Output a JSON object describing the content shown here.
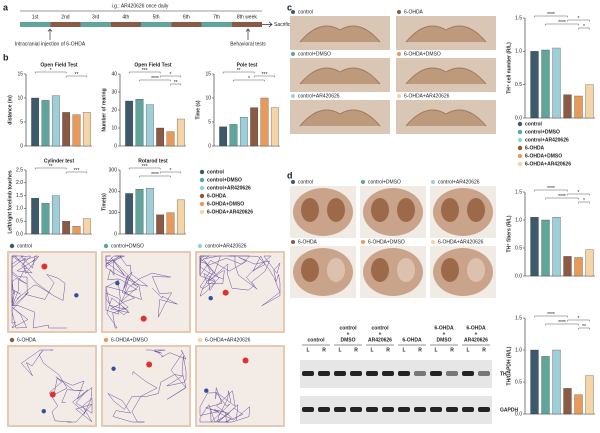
{
  "panels": [
    "a",
    "b",
    "c",
    "d"
  ],
  "timeline": {
    "title": "i.g.: AR420626 once daily",
    "weeks": [
      "1st",
      "2nd",
      "3rd",
      "4th",
      "5th",
      "6th",
      "7th",
      "8th week"
    ],
    "injection": "Intracranial injection of 6-OHDA",
    "behavior": "Behavioral tests",
    "end": "Sacrifice"
  },
  "tracks": [
    "control",
    "control+DMSO",
    "control+AR420626",
    "6-OHDA",
    "6-OHDA+DMSO",
    "6-OHDA+AR420626"
  ],
  "sections_c": [
    "control",
    "6-OHDA",
    "control+DMSO",
    "6-OHDA+DMSO",
    "control+AR420626",
    "6-OHDA+AR420626"
  ],
  "sections_d": [
    "control",
    "control+DMSO",
    "control+AR420626",
    "6-OHDA",
    "6-OHDA+DMSO",
    "6-OHDA+AR420626"
  ],
  "blot": {
    "groups": [
      [
        "control"
      ],
      [
        "control",
        "+",
        "DMSO"
      ],
      [
        "control",
        "+",
        "AR420626"
      ],
      [
        "6-OHDA"
      ],
      [
        "6-OHDA",
        "+",
        "DMSO"
      ],
      [
        "6-OHDA",
        "+",
        "AR420626"
      ]
    ],
    "lanes": [
      "L",
      "R"
    ],
    "rows": [
      "TH",
      "GAPDH"
    ]
  },
  "chart_data": [
    {
      "type": "bar",
      "title": "Open Field Test",
      "ylabel": "distance (m)",
      "categories": [
        "control",
        "control+DMSO",
        "control+AR420626",
        "6-OHDA",
        "6-OHDA+DMSO",
        "6-OHDA+AR420626"
      ],
      "colors": [
        "#3d5a6c",
        "#5fa59b",
        "#9ecfd8",
        "#8a5a44",
        "#e79a5a",
        "#f5d4a8"
      ],
      "values": [
        10,
        9.5,
        10.5,
        7,
        6.5,
        7
      ],
      "ylim": [
        0,
        15
      ],
      "yticks": [
        0,
        5,
        10,
        15
      ],
      "annotations": [
        "*",
        "**"
      ]
    },
    {
      "type": "bar",
      "title": "Open Field Test",
      "ylabel": "Number of rearing",
      "categories": [
        "control",
        "control+DMSO",
        "control+AR420626",
        "6-OHDA",
        "6-OHDA+DMSO",
        "6-OHDA+AR420626"
      ],
      "colors": [
        "#3d5a6c",
        "#5fa59b",
        "#9ecfd8",
        "#8a5a44",
        "#e79a5a",
        "#f5d4a8"
      ],
      "values": [
        25,
        26,
        23,
        10,
        8,
        15
      ],
      "ylim": [
        0,
        40
      ],
      "yticks": [
        0,
        10,
        20,
        30,
        40
      ],
      "annotations": [
        "***",
        "*",
        "****",
        "**"
      ]
    },
    {
      "type": "bar",
      "title": "Pole test",
      "ylabel": "Time (s)",
      "categories": [
        "control",
        "control+DMSO",
        "control+AR420626",
        "6-OHDA",
        "6-OHDA+DMSO",
        "6-OHDA+AR420626"
      ],
      "colors": [
        "#3d5a6c",
        "#5fa59b",
        "#9ecfd8",
        "#8a5a44",
        "#e79a5a",
        "#f5d4a8"
      ],
      "values": [
        4,
        4.5,
        6,
        8,
        10,
        8
      ],
      "ylim": [
        0,
        15
      ],
      "yticks": [
        0,
        5,
        10,
        15
      ],
      "annotations": [
        "**",
        "***",
        "*"
      ]
    },
    {
      "type": "bar",
      "title": "Cylinder test",
      "ylabel": "Left/right forelimb touches",
      "categories": [
        "control",
        "control+DMSO",
        "control+AR420626",
        "6-OHDA",
        "6-OHDA+DMSO",
        "6-OHDA+AR420626"
      ],
      "colors": [
        "#3d5a6c",
        "#5fa59b",
        "#9ecfd8",
        "#8a5a44",
        "#e79a5a",
        "#f5d4a8"
      ],
      "values": [
        1.4,
        1.2,
        1.5,
        0.5,
        0.3,
        0.6
      ],
      "ylim": [
        0,
        2.5
      ],
      "yticks": [
        {
          "value": 0,
          "label": "0.0"
        },
        {
          "value": 0.5,
          "label": "0.5"
        },
        {
          "value": 1,
          "label": "1.0"
        },
        {
          "value": 1.5,
          "label": "1.5"
        },
        {
          "value": 2,
          "label": "2.0"
        },
        {
          "value": 2.5,
          "label": "2.5"
        }
      ],
      "annotations": [
        "**",
        "***"
      ]
    },
    {
      "type": "bar",
      "title": "Rotarod test",
      "ylabel": "Time(s)",
      "categories": [
        "control",
        "control+DMSO",
        "control+AR420626",
        "6-OHDA",
        "6-OHDA+DMSO",
        "6-OHDA+AR420626"
      ],
      "colors": [
        "#3d5a6c",
        "#5fa59b",
        "#9ecfd8",
        "#8a5a44",
        "#e79a5a",
        "#f5d4a8"
      ],
      "values": [
        190,
        210,
        215,
        90,
        100,
        160
      ],
      "ylim": [
        0,
        300
      ],
      "yticks": [
        0,
        100,
        200,
        300
      ],
      "annotations": [
        "***",
        "*",
        "****"
      ],
      "legend": true
    },
    {
      "type": "bar",
      "ylabel": "TH⁺ cell number (R/L)",
      "categories": [
        "control",
        "control+DMSO",
        "control+AR420626",
        "6-OHDA",
        "6-OHDA+DMSO",
        "6-OHDA+AR420626"
      ],
      "colors": [
        "#3d5a6c",
        "#5fa59b",
        "#9ecfd8",
        "#8a5a44",
        "#e79a5a",
        "#f5d4a8"
      ],
      "values": [
        1.0,
        1.02,
        1.05,
        0.35,
        0.33,
        0.5
      ],
      "ylim": [
        0,
        1.5
      ],
      "yticks": [
        {
          "value": 0,
          "label": "0.0"
        },
        {
          "value": 0.5,
          "label": "0.5"
        },
        {
          "value": 1,
          "label": "1.0"
        },
        {
          "value": 1.5,
          "label": "1.5"
        }
      ],
      "annotations": [
        "****",
        "*",
        "****",
        "*"
      ],
      "legend": true
    },
    {
      "type": "bar",
      "ylabel": "TH⁺ fibers (R/L)",
      "categories": [
        "control",
        "control+DMSO",
        "control+AR420626",
        "6-OHDA",
        "6-OHDA+DMSO",
        "6-OHDA+AR420626"
      ],
      "colors": [
        "#3d5a6c",
        "#5fa59b",
        "#9ecfd8",
        "#8a5a44",
        "#e79a5a",
        "#f5d4a8"
      ],
      "values": [
        1.05,
        1.0,
        1.05,
        0.35,
        0.33,
        0.47
      ],
      "ylim": [
        0,
        1.5
      ],
      "yticks": [
        {
          "value": 0,
          "label": "0.0"
        },
        {
          "value": 0.5,
          "label": "0.5"
        },
        {
          "value": 1,
          "label": "1.0"
        },
        {
          "value": 1.5,
          "label": "1.5"
        }
      ],
      "annotations": [
        "****",
        "*",
        "****",
        "*"
      ]
    },
    {
      "type": "bar",
      "ylabel": "TH/GAPDH (R/L)",
      "categories": [
        "control",
        "control+DMSO",
        "control+AR420626",
        "6-OHDA",
        "6-OHDA+DMSO",
        "6-OHDA+AR420626"
      ],
      "colors": [
        "#3d5a6c",
        "#5fa59b",
        "#9ecfd8",
        "#8a5a44",
        "#e79a5a",
        "#f5d4a8"
      ],
      "values": [
        1.0,
        0.9,
        1.0,
        0.4,
        0.3,
        0.6
      ],
      "ylim": [
        0,
        1.5
      ],
      "yticks": [
        {
          "value": 0,
          "label": "0.0"
        },
        {
          "value": 0.5,
          "label": "0.5"
        },
        {
          "value": 1,
          "label": "1.0"
        },
        {
          "value": 1.5,
          "label": "1.5"
        }
      ],
      "annotations": [
        "****",
        "*",
        "****",
        "**"
      ]
    }
  ]
}
